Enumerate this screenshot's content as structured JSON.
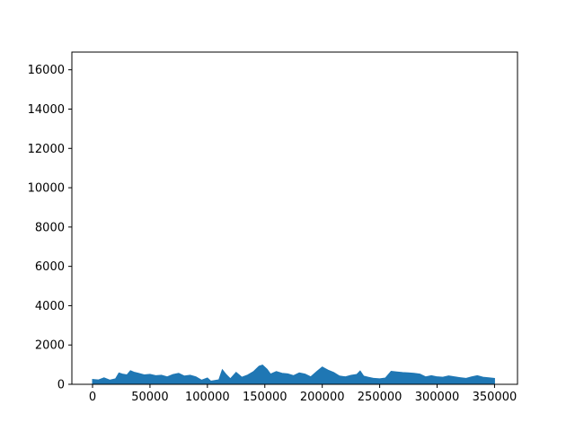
{
  "chart_data": {
    "type": "line",
    "title": "",
    "xlabel": "",
    "ylabel": "",
    "xlim": [
      -18000,
      370000
    ],
    "ylim": [
      0,
      16900
    ],
    "xticks": [
      0,
      50000,
      100000,
      150000,
      200000,
      250000,
      300000,
      350000
    ],
    "xtick_labels": [
      "0",
      "50000",
      "100000",
      "150000",
      "200000",
      "250000",
      "300000",
      "350000"
    ],
    "yticks": [
      0,
      2000,
      4000,
      6000,
      8000,
      10000,
      12000,
      14000,
      16000
    ],
    "ytick_labels": [
      "0",
      "2000",
      "4000",
      "6000",
      "8000",
      "10000",
      "12000",
      "14000",
      "16000"
    ],
    "grid": false,
    "series": [
      {
        "color": "#1f77b4",
        "x": [
          0,
          5000,
          10000,
          15000,
          20000,
          23000,
          26000,
          30000,
          33000,
          36000,
          40000,
          45000,
          50000,
          55000,
          60000,
          65000,
          70000,
          75000,
          80000,
          85000,
          90000,
          95000,
          100000,
          103000,
          107000,
          110000,
          113000,
          116000,
          120000,
          125000,
          130000,
          135000,
          140000,
          145000,
          148000,
          152000,
          155000,
          160000,
          165000,
          170000,
          175000,
          180000,
          185000,
          190000,
          195000,
          200000,
          205000,
          210000,
          215000,
          220000,
          225000,
          230000,
          233000,
          236000,
          240000,
          245000,
          250000,
          255000,
          260000,
          265000,
          270000,
          275000,
          280000,
          285000,
          290000,
          295000,
          300000,
          305000,
          310000,
          315000,
          320000,
          325000,
          330000,
          335000,
          340000,
          345000,
          350000
        ],
        "y": [
          250,
          220,
          330,
          210,
          280,
          580,
          520,
          480,
          690,
          620,
          560,
          480,
          510,
          440,
          460,
          380,
          500,
          560,
          420,
          460,
          380,
          210,
          320,
          160,
          200,
          230,
          740,
          520,
          280,
          610,
          360,
          470,
          640,
          920,
          980,
          760,
          520,
          650,
          560,
          530,
          440,
          580,
          520,
          380,
          640,
          880,
          720,
          600,
          420,
          380,
          460,
          500,
          680,
          420,
          360,
          300,
          280,
          320,
          660,
          630,
          600,
          580,
          560,
          520,
          380,
          440,
          380,
          360,
          430,
          380,
          340,
          300,
          380,
          440,
          360,
          330,
          300
        ]
      }
    ]
  }
}
